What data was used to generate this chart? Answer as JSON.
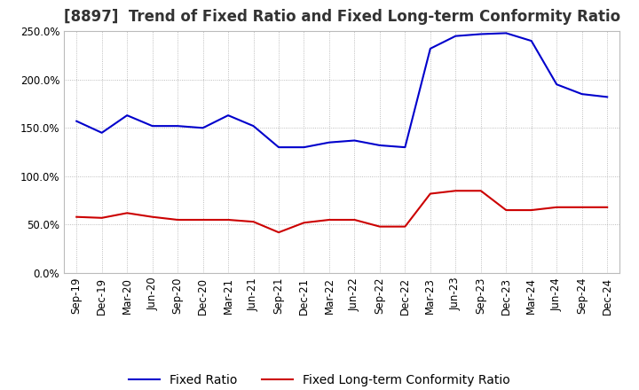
{
  "title": "[8897]  Trend of Fixed Ratio and Fixed Long-term Conformity Ratio",
  "x_labels": [
    "Sep-19",
    "Dec-19",
    "Mar-20",
    "Jun-20",
    "Sep-20",
    "Dec-20",
    "Mar-21",
    "Jun-21",
    "Sep-21",
    "Dec-21",
    "Mar-22",
    "Jun-22",
    "Sep-22",
    "Dec-22",
    "Mar-23",
    "Jun-23",
    "Sep-23",
    "Dec-23",
    "Mar-24",
    "Jun-24",
    "Sep-24",
    "Dec-24"
  ],
  "fixed_ratio": [
    157,
    145,
    163,
    152,
    152,
    150,
    163,
    152,
    130,
    130,
    135,
    137,
    132,
    130,
    232,
    245,
    247,
    248,
    240,
    195,
    185,
    182
  ],
  "fixed_lt_ratio": [
    58,
    57,
    62,
    58,
    55,
    55,
    55,
    53,
    42,
    52,
    55,
    55,
    48,
    48,
    82,
    85,
    85,
    65,
    65,
    68,
    68,
    68
  ],
  "fixed_ratio_color": "#0000cc",
  "fixed_lt_ratio_color": "#cc0000",
  "ylim_min": 0,
  "ylim_max": 250,
  "yticks": [
    0,
    50,
    100,
    150,
    200,
    250
  ],
  "background_color": "#ffffff",
  "grid_color": "#aaaaaa",
  "title_fontsize": 12,
  "legend_fontsize": 10,
  "tick_fontsize": 8.5
}
